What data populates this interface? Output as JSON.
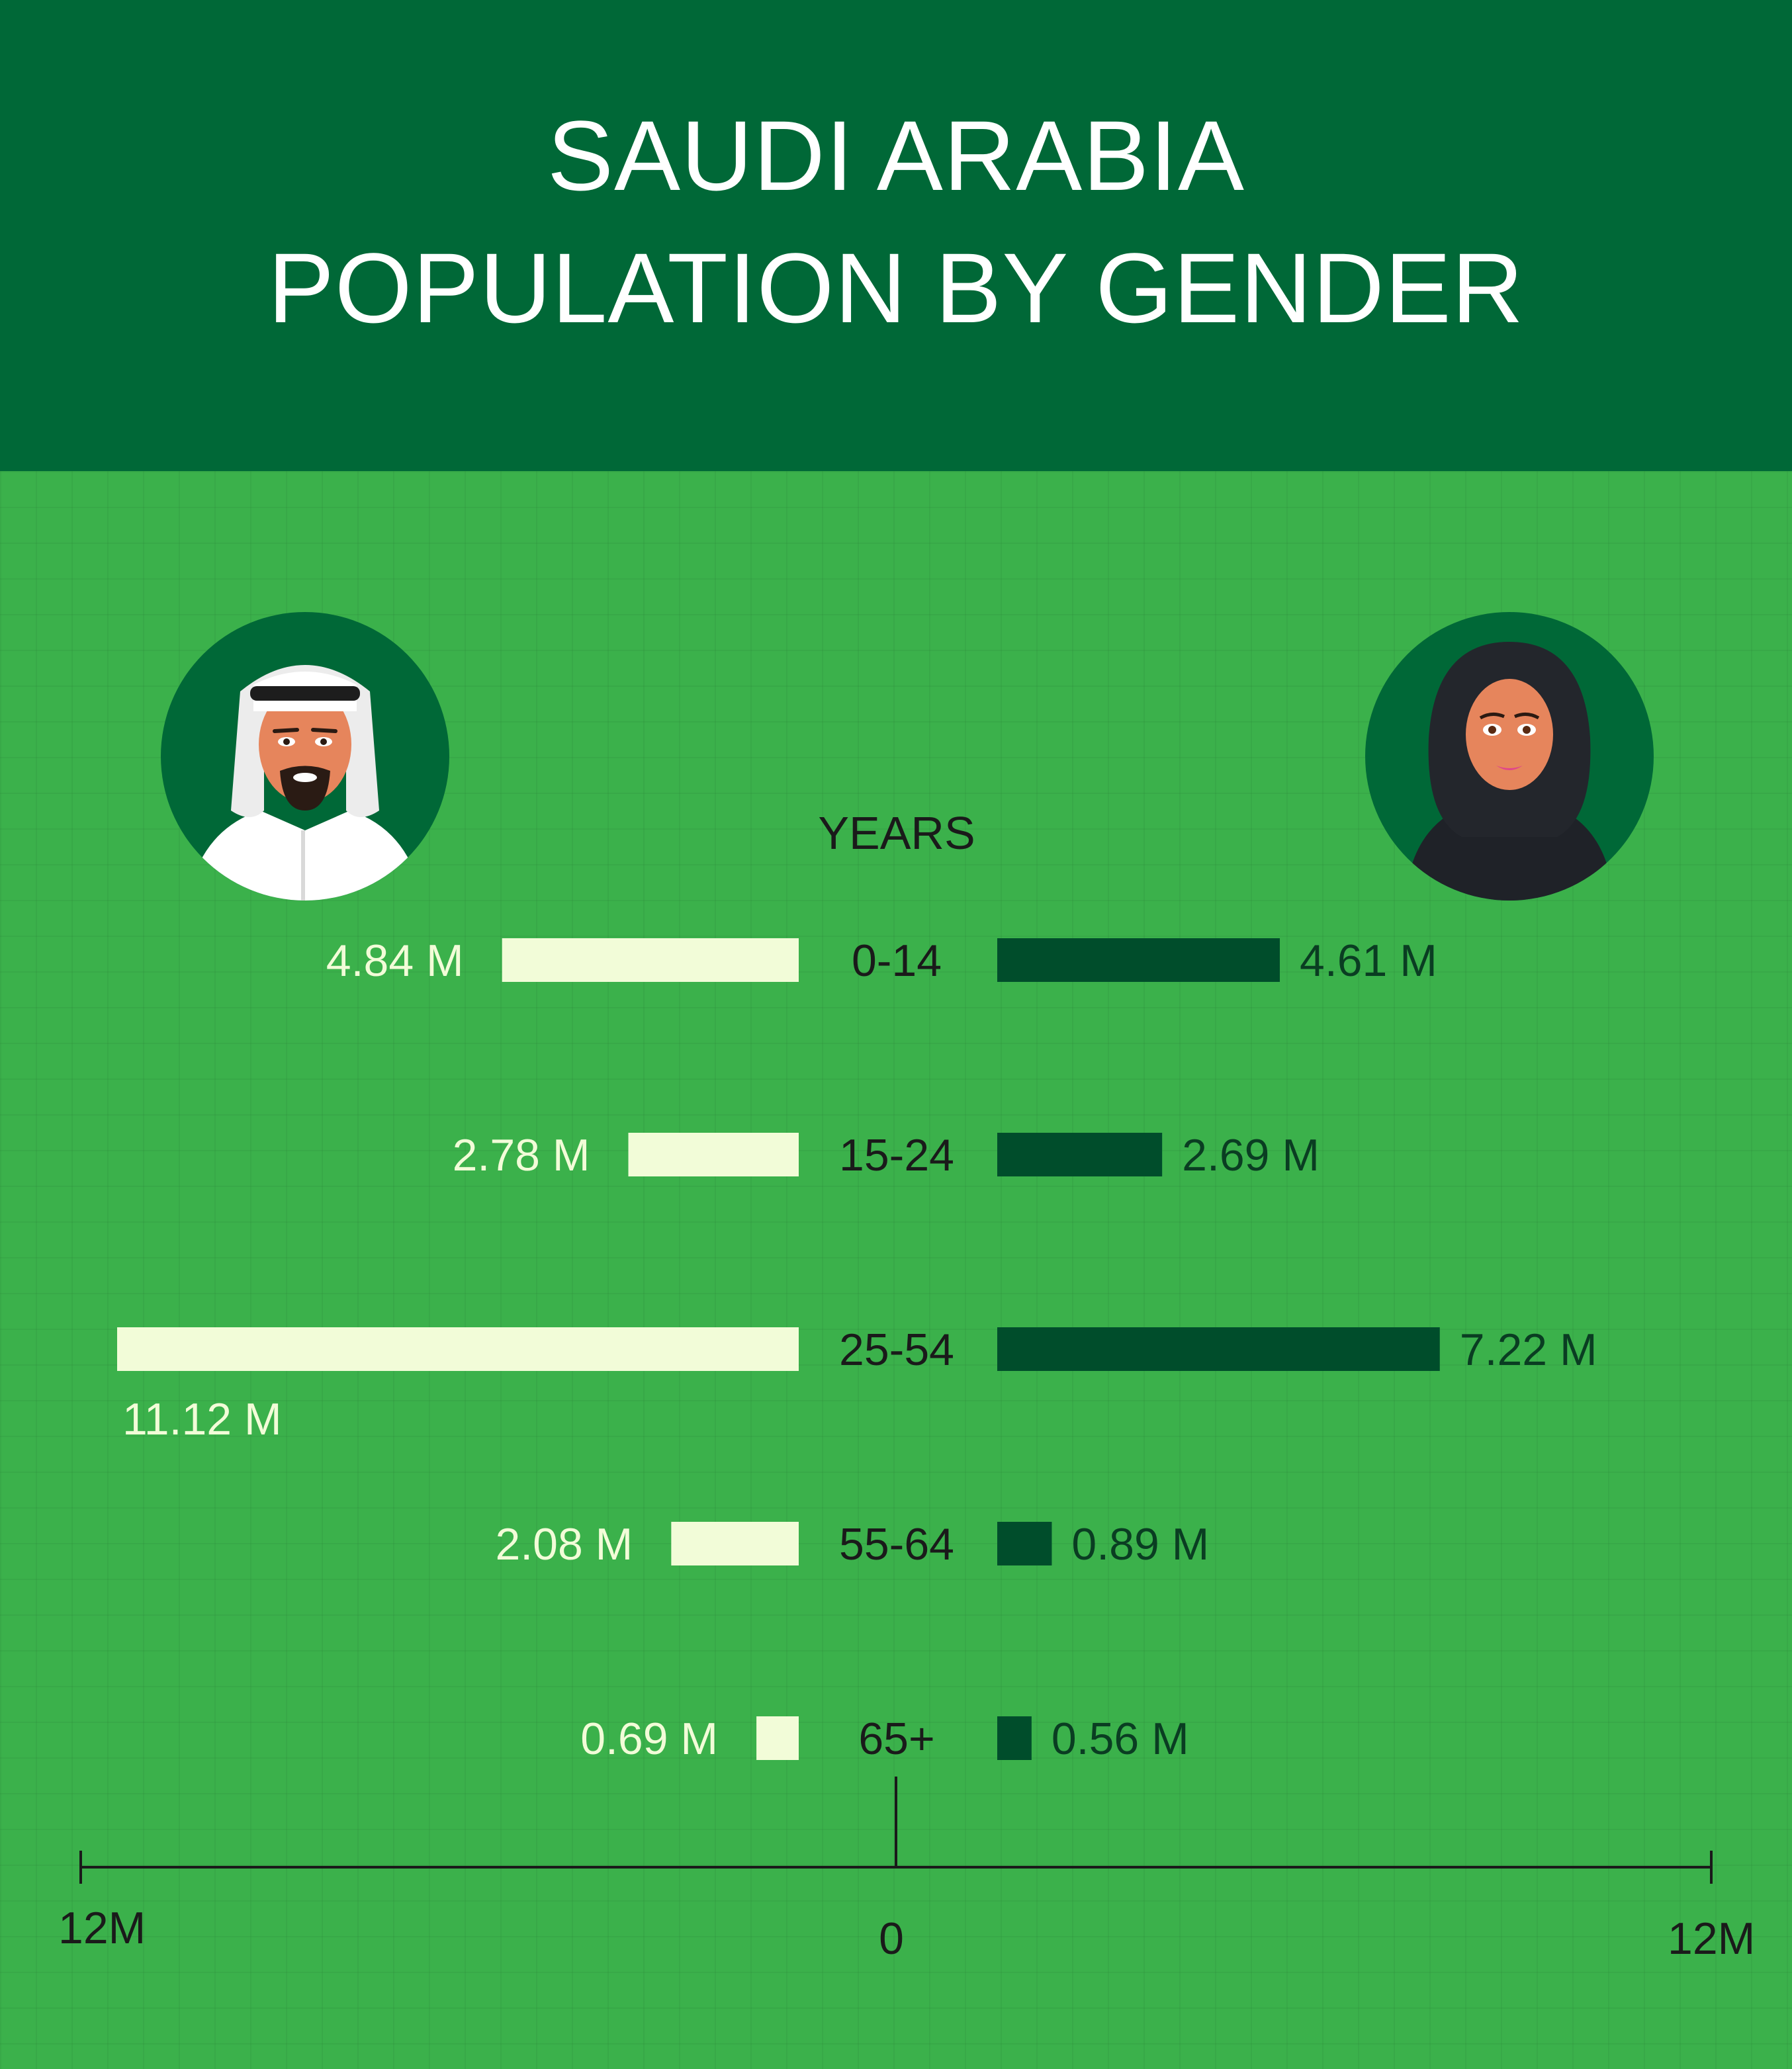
{
  "header": {
    "title_line1": "SAUDI ARABIA",
    "title_line2": "POPULATION BY GENDER"
  },
  "colors": {
    "header_bg": "#006837",
    "plot_bg": "#3bb14b",
    "male_bar": "#f2fcd8",
    "female_bar": "#004d2b",
    "male_label": "#f2fcd8",
    "female_label": "#0a3d22",
    "axis": "#1a1a1a"
  },
  "icons": {
    "male": "saudi-man-avatar-icon",
    "female": "saudi-woman-avatar-icon"
  },
  "chart_data": {
    "type": "bar",
    "orientation": "horizontal-diverging",
    "title": "SAUDI ARABIA POPULATION BY GENDER",
    "category_header": "YEARS",
    "categories": [
      "0-14",
      "15-24",
      "25-54",
      "55-64",
      "65+"
    ],
    "series": [
      {
        "values": [
          4.84,
          2.78,
          11.12,
          2.08,
          0.69
        ],
        "labels": [
          "4.84 M",
          "2.78 M",
          "11.12 M",
          "2.08 M",
          "0.69 M"
        ]
      },
      {
        "values": [
          4.61,
          2.69,
          7.22,
          0.89,
          0.56
        ],
        "labels": [
          "4.61 M",
          "2.69 M",
          "7.22 M",
          "0.89 M",
          "0.56 M"
        ]
      }
    ],
    "axis": {
      "left_label": "12M",
      "center_label": "0",
      "right_label": "12M",
      "range": [
        -12,
        12
      ]
    },
    "grid": false
  }
}
